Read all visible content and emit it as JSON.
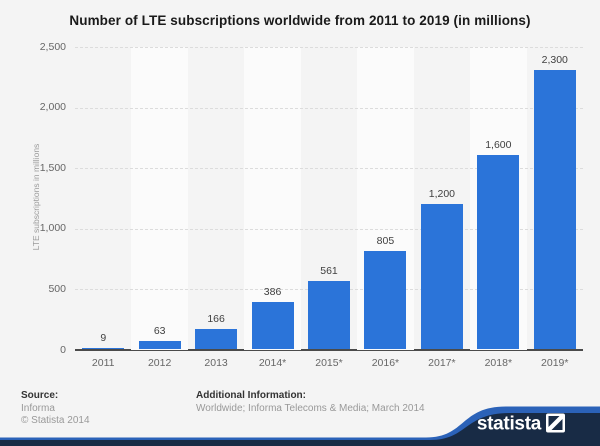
{
  "title": "Number of LTE subscriptions worldwide from 2011 to 2019 (in millions)",
  "chart_data": {
    "type": "bar",
    "categories": [
      "2011",
      "2012",
      "2013",
      "2014*",
      "2015*",
      "2016*",
      "2017*",
      "2018*",
      "2019*"
    ],
    "values": [
      9,
      63,
      166,
      386,
      561,
      805,
      1200,
      1600,
      2300
    ],
    "value_labels": [
      "9",
      "63",
      "166",
      "386",
      "561",
      "805",
      "1,200",
      "1,600",
      "2,300"
    ],
    "title": "Number of LTE subscriptions worldwide from 2011 to 2019 (in millions)",
    "xlabel": "",
    "ylabel": "LTE subscriptions in millions",
    "ylim": [
      0,
      2500
    ],
    "ytick_labels_top_down": [
      "2,500",
      "2,000",
      "1,500",
      "1,000",
      "500",
      "0"
    ],
    "grid": true,
    "legend_position": "none",
    "bar_color": "#2b74d9",
    "band_color": "#fbfbfb",
    "background_color": "#f4f4f4"
  },
  "footer": {
    "source_label": "Source:",
    "source_lines": [
      "Informa",
      "© Statista 2014"
    ],
    "additional_label": "Additional Information:",
    "additional_text": "Worldwide; Informa Telecoms & Media; March 2014"
  },
  "branding": {
    "logo_text": "statista",
    "navy_color": "#182b45",
    "blue_color": "#2b62b8"
  }
}
